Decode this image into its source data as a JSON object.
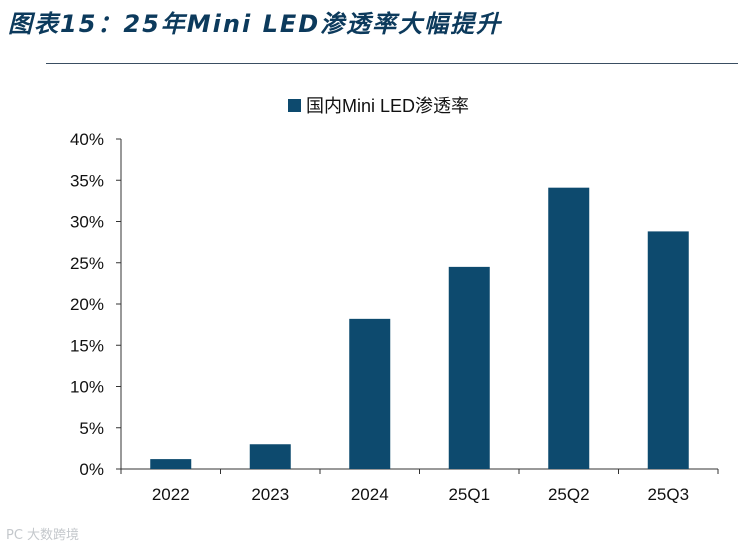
{
  "figure_title": "图表15：25年Mini LED渗透率大幅提升",
  "watermark": "PC 大数跨境",
  "colors": {
    "bar": "#0d4a6e",
    "axis": "#333333",
    "text": "#111111",
    "title": "#0c3a5c"
  },
  "chart_data": {
    "type": "bar",
    "title": "",
    "categories": [
      "2022",
      "2023",
      "2024",
      "25Q1",
      "25Q2",
      "25Q3"
    ],
    "series": [
      {
        "name": "国内Mini LED渗透率",
        "values": [
          1.2,
          3.0,
          18.2,
          24.5,
          34.1,
          28.8
        ]
      }
    ],
    "ylim": [
      0,
      40
    ],
    "yticks": [
      0,
      5,
      10,
      15,
      20,
      25,
      30,
      35,
      40
    ],
    "ytick_labels": [
      "0%",
      "5%",
      "10%",
      "15%",
      "20%",
      "25%",
      "30%",
      "35%",
      "40%"
    ],
    "xlabel": "",
    "ylabel": "",
    "legend_position": "top-center",
    "grid": false
  }
}
